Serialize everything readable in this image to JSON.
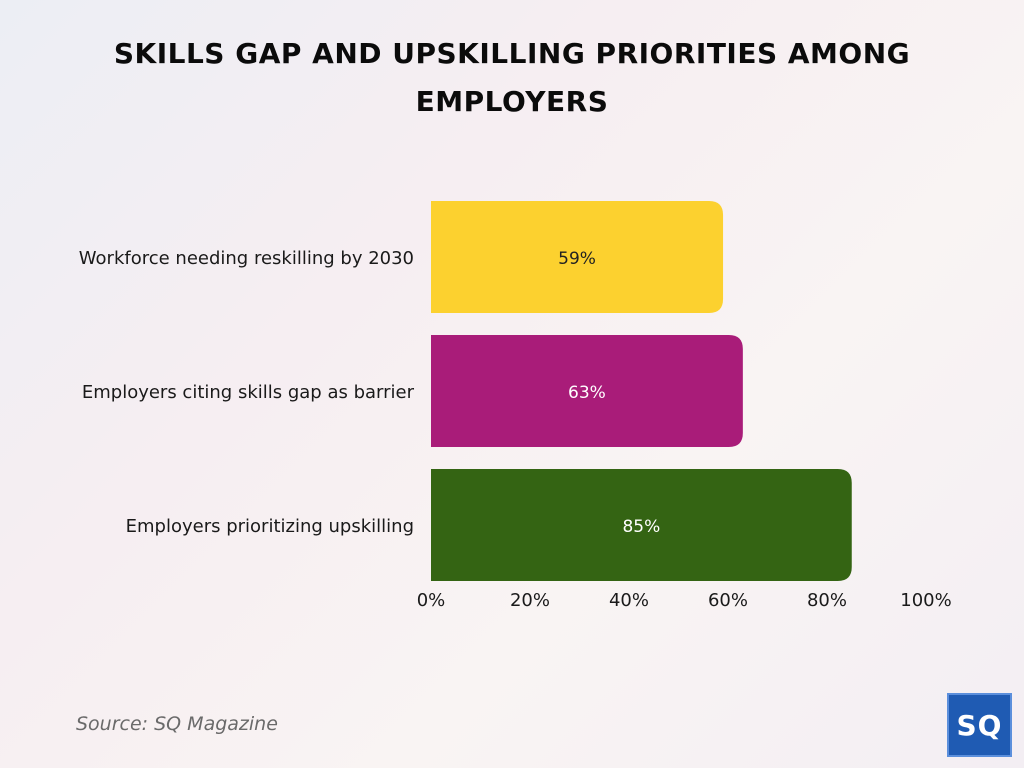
{
  "title": "SKILLS GAP AND UPSKILLING PRIORITIES AMONG EMPLOYERS",
  "source": "Source: SQ Magazine",
  "logo_text": "SQ",
  "chart_data": {
    "type": "bar",
    "orientation": "horizontal",
    "categories": [
      "Workforce needing reskilling by 2030",
      "Employers citing skills gap as barrier",
      "Employers prioritizing upskilling"
    ],
    "values": [
      59,
      63,
      85
    ],
    "value_labels": [
      "59%",
      "63%",
      "85%"
    ],
    "colors": [
      "#fcd12f",
      "#a91c79",
      "#346413"
    ],
    "label_colors": [
      "#222222",
      "#ffffff",
      "#ffffff"
    ],
    "xlim": [
      0,
      100
    ],
    "xticks": [
      0,
      20,
      40,
      60,
      80,
      100
    ],
    "xtick_labels": [
      "0%",
      "20%",
      "40%",
      "60%",
      "80%",
      "100%"
    ],
    "grid": false,
    "legend": "none"
  }
}
